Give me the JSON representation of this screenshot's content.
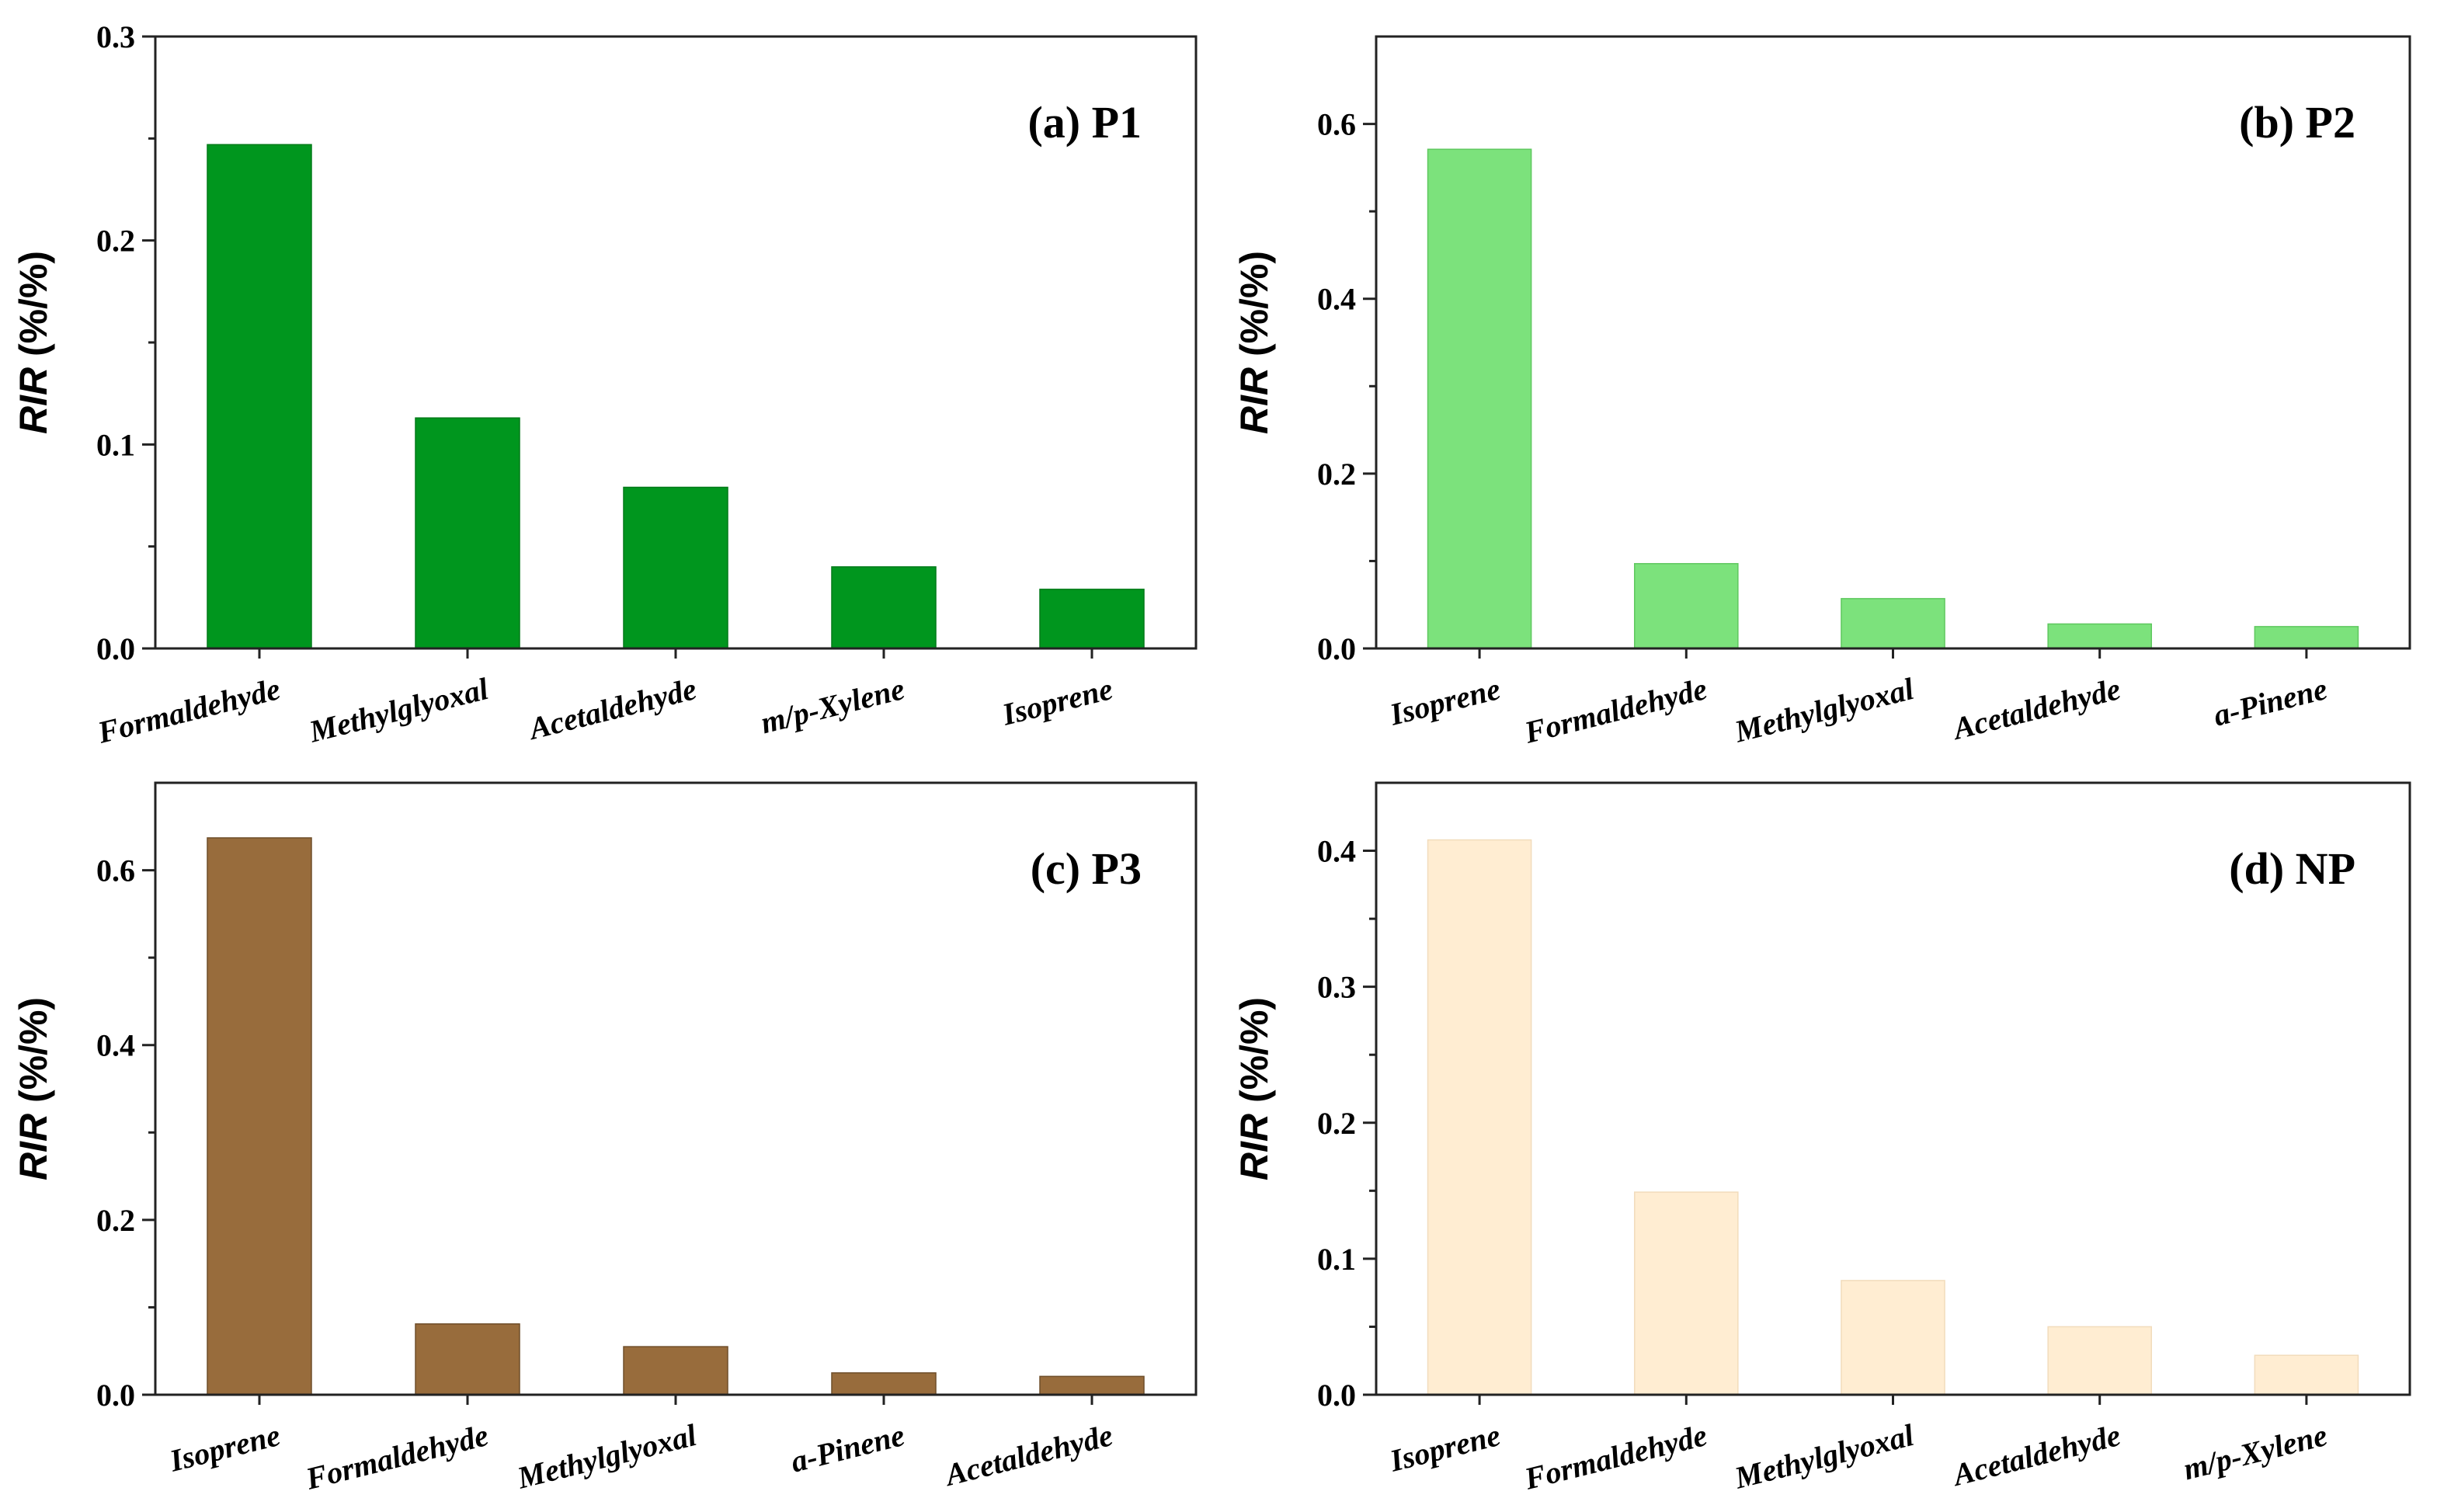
{
  "chart_data": [
    {
      "type": "bar",
      "title": "(a)  P1",
      "ylabel_italic": "RIR",
      "ylabel_unit": " (%/%)",
      "categories": [
        "Formaldehyde",
        "Methylglyoxal",
        "Acetaldehyde",
        "m/p-Xylene",
        "Isoprene"
      ],
      "values": [
        0.247,
        0.113,
        0.079,
        0.04,
        0.029
      ],
      "ylim": [
        0,
        0.3
      ],
      "yticks": [
        0.0,
        0.1,
        0.2,
        0.3
      ],
      "ytick_labels": [
        "0.0",
        "0.1",
        "0.2",
        "0.3"
      ],
      "minor_step": 0.05,
      "color": "#00961E",
      "stroke": "#007a18",
      "title_position": "top-right"
    },
    {
      "type": "bar",
      "title": "(b)  P2",
      "ylabel_italic": "RIR",
      "ylabel_unit": " (%/%)",
      "categories": [
        "Isoprene",
        "Formaldehyde",
        "Methylglyoxal",
        "Acetaldehyde",
        "a-Pinene"
      ],
      "values": [
        0.571,
        0.097,
        0.057,
        0.028,
        0.025
      ],
      "ylim": [
        0,
        0.7
      ],
      "yticks": [
        0.0,
        0.2,
        0.4,
        0.6
      ],
      "ytick_labels": [
        "0.0",
        "0.2",
        "0.4",
        "0.6"
      ],
      "minor_step": 0.1,
      "color": "#7CE27C",
      "stroke": "#5fc85f",
      "title_position": "top-right"
    },
    {
      "type": "bar",
      "title": "(c)  P3",
      "ylabel_italic": "RIR",
      "ylabel_unit": " (%/%)",
      "categories": [
        "Isoprene",
        "Formaldehyde",
        "Methylglyoxal",
        "a-Pinene",
        "Acetaldehyde"
      ],
      "values": [
        0.637,
        0.081,
        0.055,
        0.025,
        0.021
      ],
      "ylim": [
        0,
        0.7
      ],
      "yticks": [
        0.0,
        0.2,
        0.4,
        0.6
      ],
      "ytick_labels": [
        "0.0",
        "0.2",
        "0.4",
        "0.6"
      ],
      "minor_step": 0.1,
      "color": "#986C3C",
      "stroke": "#6f4e2a",
      "title_position": "top-right"
    },
    {
      "type": "bar",
      "title": "(d)  NP",
      "ylabel_italic": "RIR",
      "ylabel_unit": " (%/%)",
      "categories": [
        "Isoprene",
        "Formaldehyde",
        "Methylglyoxal",
        "Acetaldehyde",
        "m/p-Xylene"
      ],
      "values": [
        0.408,
        0.149,
        0.084,
        0.05,
        0.029
      ],
      "ylim": [
        0,
        0.45
      ],
      "yticks": [
        0.0,
        0.1,
        0.2,
        0.3,
        0.4
      ],
      "ytick_labels": [
        "0.0",
        "0.1",
        "0.2",
        "0.3",
        "0.4"
      ],
      "minor_step": 0.05,
      "color": "#FFEDD2",
      "stroke": "#f2dcbc",
      "title_position": "top-right"
    }
  ]
}
